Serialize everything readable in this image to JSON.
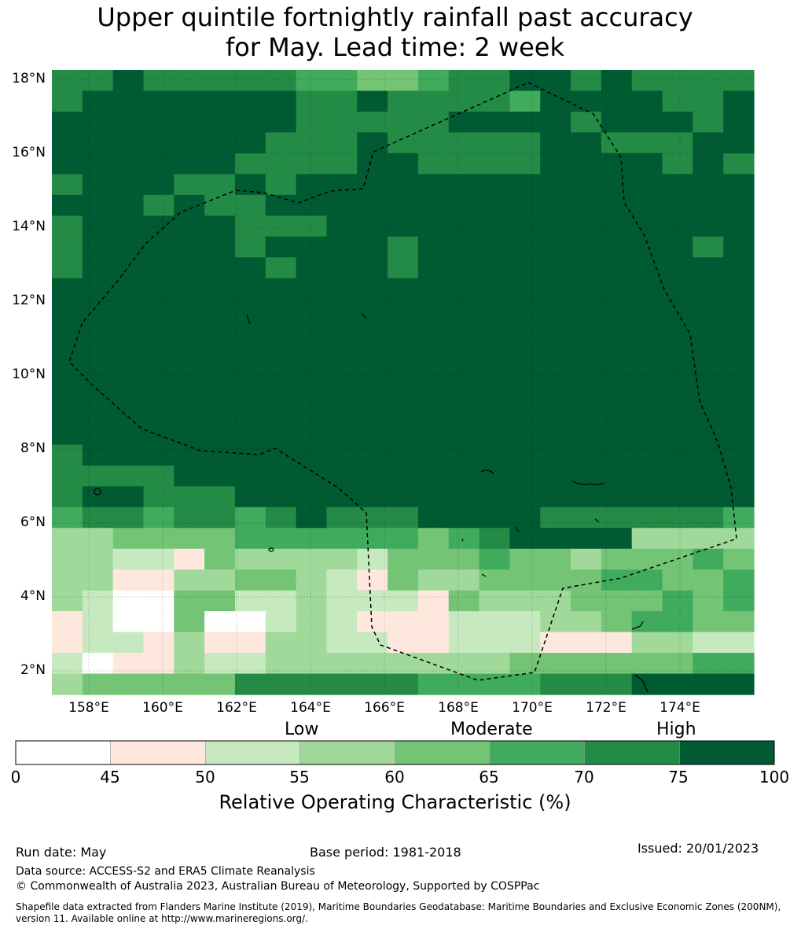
{
  "title_line1": "Upper quintile fortnightly rainfall past accuracy",
  "title_line2": "for May. Lead time: 2 week",
  "lat_labels": [
    "18°N",
    "16°N",
    "14°N",
    "12°N",
    "10°N",
    "8°N",
    "6°N",
    "4°N",
    "2°N"
  ],
  "lon_labels": [
    "158°E",
    "160°E",
    "162°E",
    "164°E",
    "166°E",
    "168°E",
    "170°E",
    "172°E",
    "174°E"
  ],
  "categories": {
    "low": "Low",
    "moderate": "Moderate",
    "high": "High"
  },
  "colorbar": {
    "ticks": [
      "0",
      "45",
      "50",
      "55",
      "60",
      "65",
      "70",
      "75",
      "100"
    ],
    "colors": [
      "#ffffff",
      "#fee8de",
      "#c7e9c0",
      "#a1d99b",
      "#74c476",
      "#41ab5d",
      "#238b45",
      "#005a32"
    ],
    "label": "Relative Operating Characteristic (%)"
  },
  "grid": {
    "cols": 23,
    "rows": 30,
    "rows_data": [
      "66766666554456677676666",
      "67777777667666657777667",
      "77777777666667777677767",
      "77777776667666667766677",
      "77777766667766667777676",
      "67776676777777777777777",
      "77767667777777777777777",
      "67777766677777777777777",
      "67777767777677777777767",
      "67777776777677777777777",
      "77777777777777777777777",
      "77777777777777777777777",
      "77777777777777777777777",
      "77777777777777777777777",
      "77777777777777777777777",
      "77777777777777777777777",
      "77777777777777777777777",
      "77777777777777777777777",
      "67777777777777777777777",
      "66667777777777777777777",
      "67766677777777777777777",
      "56656656766677776666665",
      "33444455555545677773333",
      "33221433332444544344454",
      "33113344321433444455445",
      "32004422322214333444545",
      "12004002321112223345544",
      "12213113322112221113322",
      "20113223333333344444455",
      "34444466666655556667777"
    ]
  },
  "footer": {
    "run_date": "Run date: May",
    "base_period": "Base period: 1981-2018",
    "issued": "Issued: 20/01/2023",
    "data_source": "Data source: ACCESS-S2 and ERA5 Climate Reanalysis",
    "copyright": "© Commonwealth of Australia 2023, Australian Bureau of Meteorology, Supported by COSPPac",
    "shapefile_line1": "Shapefile data extracted from Flanders Marine Institute (2019), Maritime Boundaries Geodatabase: Maritime Boundaries and Exclusive Economic Zones (200NM),",
    "shapefile_line2": "version 11. Available online at http://www.marineregions.org/."
  }
}
